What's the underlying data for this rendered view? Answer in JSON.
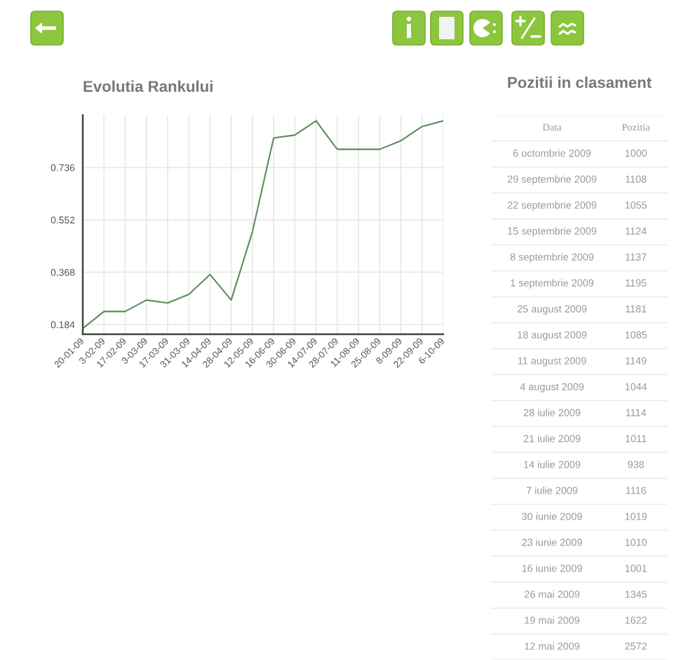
{
  "chart_data": [
    {
      "type": "line",
      "title": "Evolutia Rankului",
      "categories": [
        "20-01-09",
        "3-02-09",
        "17-02-09",
        "3-03-09",
        "17-03-09",
        "31-03-09",
        "14-04-09",
        "28-04-09",
        "12-05-09",
        "16-06-09",
        "30-06-09",
        "14-07-09",
        "28-07-09",
        "11-08-09",
        "25-08-09",
        "8-09-09",
        "22-09-09",
        "6-10-09"
      ],
      "series": [
        {
          "color": "#5b8c5b",
          "values": [
            0.17,
            0.23,
            0.23,
            0.27,
            0.26,
            0.29,
            0.36,
            0.27,
            0.51,
            0.84,
            0.85,
            0.9,
            0.8,
            0.8,
            0.8,
            0.83,
            0.88,
            0.9
          ]
        }
      ],
      "ylim": [
        0.15,
        0.92
      ],
      "yticks": [
        0.184,
        0.368,
        0.552,
        0.736
      ],
      "grid": true
    },
    {
      "type": "other",
      "title": "Pozitii in clasament",
      "xlabel": "Data",
      "ylabel": "Pozitia",
      "categories": [
        "6 octombrie 2009",
        "29 septembrie 2009",
        "22 septembrie 2009",
        "15 septembrie 2009",
        "8 septembrie 2009",
        "1 septembrie 2009",
        "25 august 2009",
        "18 august 2009",
        "11 august 2009",
        "4 august 2009",
        "28 iulie 2009",
        "21 iulie 2009",
        "14 iulie 2009",
        "7 iulie 2009",
        "30 iunie 2009",
        "23 iunie 2009",
        "16 iunie 2009",
        "26 mai 2009",
        "19 mai 2009",
        "12 mai 2009"
      ],
      "values": [
        1000,
        1108,
        1055,
        1124,
        1137,
        1195,
        1181,
        1085,
        1149,
        1044,
        1114,
        1011,
        938,
        1116,
        1019,
        1010,
        1001,
        1345,
        1622,
        2572
      ],
      "data_labels": true
    }
  ]
}
